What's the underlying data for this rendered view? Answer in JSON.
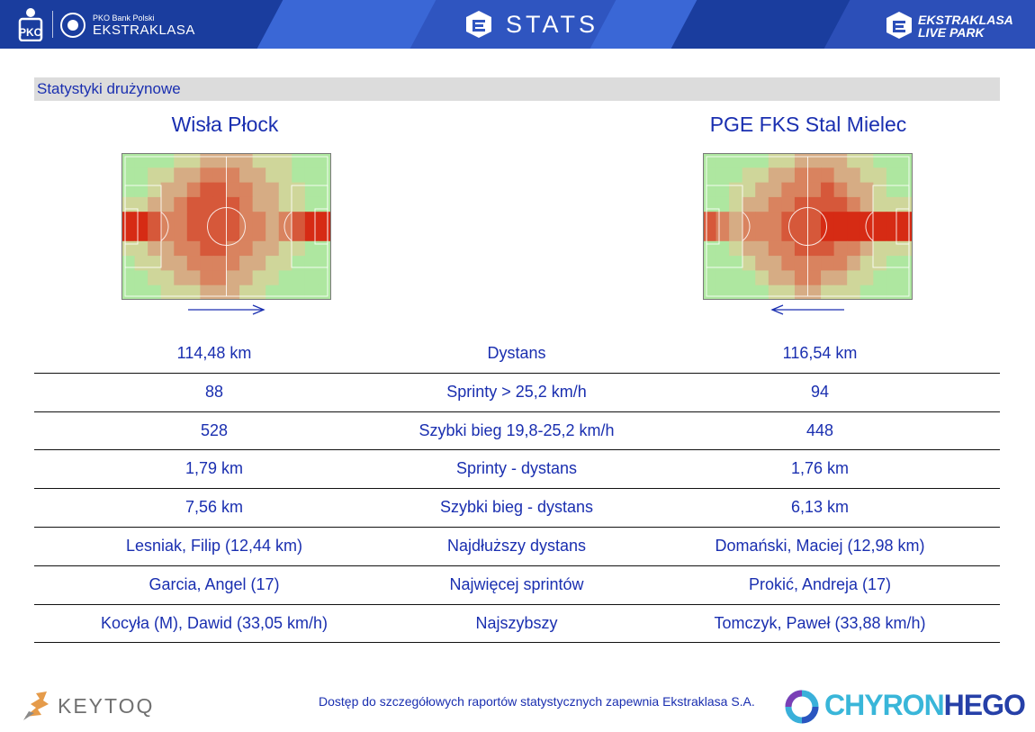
{
  "header": {
    "brand_small": "PKO Bank Polski",
    "brand_big": "EKSTRAKLASA",
    "stats_title": "STATS",
    "liveparks_line1": "EKSTRAKLASA",
    "liveparks_line2": "LIVE PARK",
    "pko_icon": "pko-bp-logo-icon",
    "ekstraklasa_icon": "ekstraklasa-badge-icon"
  },
  "section": {
    "title": "Statystyki drużynowe"
  },
  "teams": {
    "home": {
      "name": "Wisła Płock",
      "direction": "right"
    },
    "away": {
      "name": "PGE FKS Stal Mielec",
      "direction": "left"
    }
  },
  "heatmaps": {
    "home_grid": [
      [
        0,
        0,
        0,
        0,
        1,
        1,
        2,
        2,
        2,
        2,
        1,
        1,
        1,
        0,
        0,
        0
      ],
      [
        0,
        0,
        1,
        1,
        2,
        2,
        3,
        3,
        3,
        2,
        2,
        1,
        1,
        0,
        0,
        0
      ],
      [
        0,
        0,
        1,
        2,
        2,
        3,
        4,
        4,
        3,
        3,
        2,
        2,
        1,
        1,
        0,
        0
      ],
      [
        1,
        1,
        2,
        2,
        3,
        4,
        4,
        4,
        4,
        3,
        2,
        2,
        1,
        1,
        0,
        0
      ],
      [
        5,
        5,
        4,
        3,
        3,
        4,
        4,
        4,
        4,
        3,
        3,
        2,
        3,
        4,
        5,
        5
      ],
      [
        5,
        5,
        4,
        3,
        3,
        4,
        4,
        4,
        4,
        3,
        3,
        2,
        3,
        4,
        5,
        5
      ],
      [
        1,
        1,
        2,
        2,
        3,
        3,
        4,
        4,
        3,
        3,
        2,
        2,
        1,
        1,
        0,
        0
      ],
      [
        0,
        1,
        1,
        2,
        2,
        3,
        3,
        3,
        3,
        2,
        2,
        1,
        1,
        0,
        0,
        0
      ],
      [
        0,
        0,
        1,
        1,
        2,
        2,
        3,
        3,
        2,
        2,
        1,
        1,
        0,
        0,
        0,
        0
      ],
      [
        0,
        0,
        0,
        1,
        1,
        1,
        2,
        2,
        2,
        1,
        1,
        0,
        0,
        0,
        0,
        0
      ]
    ],
    "away_grid": [
      [
        0,
        0,
        0,
        0,
        0,
        1,
        1,
        2,
        2,
        2,
        2,
        1,
        1,
        0,
        0,
        0
      ],
      [
        0,
        0,
        0,
        1,
        1,
        2,
        2,
        3,
        3,
        3,
        2,
        2,
        1,
        1,
        0,
        0
      ],
      [
        0,
        0,
        1,
        1,
        2,
        2,
        3,
        3,
        3,
        4,
        3,
        2,
        2,
        1,
        0,
        0
      ],
      [
        0,
        0,
        1,
        2,
        2,
        3,
        3,
        4,
        4,
        4,
        4,
        3,
        2,
        1,
        1,
        1
      ],
      [
        4,
        3,
        2,
        3,
        3,
        3,
        4,
        4,
        4,
        5,
        5,
        5,
        5,
        5,
        5,
        5
      ],
      [
        4,
        3,
        2,
        3,
        3,
        3,
        4,
        4,
        4,
        5,
        5,
        5,
        5,
        5,
        5,
        5
      ],
      [
        0,
        0,
        1,
        2,
        2,
        3,
        3,
        4,
        4,
        4,
        3,
        3,
        2,
        1,
        1,
        1
      ],
      [
        0,
        0,
        0,
        1,
        2,
        2,
        3,
        3,
        3,
        3,
        3,
        2,
        1,
        1,
        0,
        0
      ],
      [
        0,
        0,
        0,
        0,
        1,
        2,
        2,
        3,
        3,
        2,
        2,
        1,
        1,
        0,
        0,
        0
      ],
      [
        0,
        0,
        0,
        0,
        0,
        1,
        1,
        2,
        2,
        1,
        1,
        1,
        0,
        0,
        0,
        0
      ]
    ],
    "palette": [
      "#aee7a0",
      "#cfd69a",
      "#d6ac84",
      "#d9835f",
      "#d6583a",
      "#d62b14"
    ]
  },
  "stats": [
    {
      "home": "114,48 km",
      "label": "Dystans",
      "away": "116,54 km"
    },
    {
      "home": "88",
      "label": "Sprinty > 25,2 km/h",
      "away": "94"
    },
    {
      "home": "528",
      "label": "Szybki bieg 19,8-25,2 km/h",
      "away": "448"
    },
    {
      "home": "1,79 km",
      "label": "Sprinty - dystans",
      "away": "1,76 km"
    },
    {
      "home": "7,56 km",
      "label": "Szybki bieg - dystans",
      "away": "6,13 km"
    },
    {
      "home": "Lesniak, Filip (12,44 km)",
      "label": "Najdłuższy dystans",
      "away": "Domański, Maciej (12,98 km)"
    },
    {
      "home": "Garcia, Angel (17)",
      "label": "Najwięcej sprintów",
      "away": "Prokić, Andreja (17)"
    },
    {
      "home": "Kocyła (M), Dawid (33,05 km/h)",
      "label": "Najszybszy",
      "away": "Tomczyk, Paweł (33,88 km/h)"
    }
  ],
  "footer": {
    "keytoq": "KEYTOQ",
    "note": "Dostęp do szczegółowych raportów statystycznych zapewnia Ekstraklasa S.A.",
    "chyron_a": "CHYRON",
    "chyron_b": "HEGO"
  },
  "colors": {
    "header_blue": "#1a3d9e",
    "text_blue": "#1a2fb0",
    "section_gray": "#dcdcdc"
  }
}
